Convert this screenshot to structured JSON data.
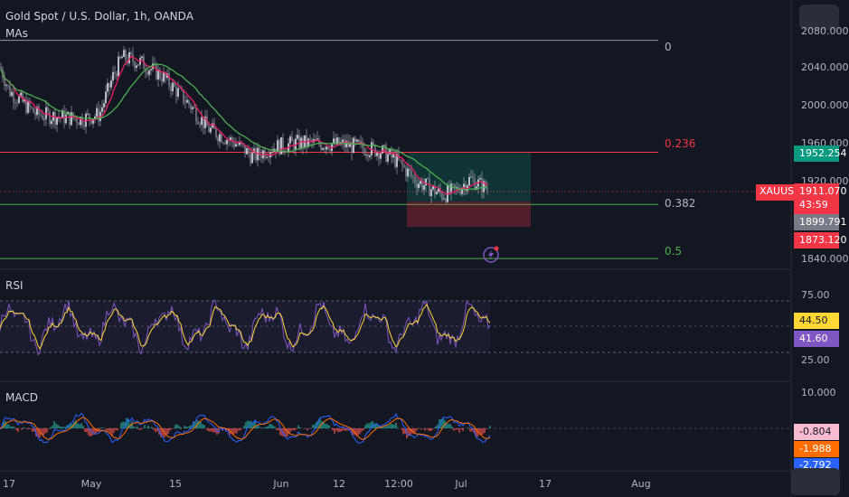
{
  "header": {
    "title": "Gold Spot / U.S. Dollar, 1h, OANDA",
    "indicator": "MAs"
  },
  "fib": {
    "levels": [
      {
        "label": "0",
        "price": 2068.0,
        "color": "#9598a1"
      },
      {
        "label": "0.236",
        "price": 1950.0,
        "color": "#f23645"
      },
      {
        "label": "0.382",
        "price": 1895.0,
        "color": "#4caf50"
      },
      {
        "label": "0.5",
        "price": 1838.0,
        "color": "#4caf50"
      }
    ]
  },
  "price_axis": {
    "ticks": [
      "2080.000",
      "2040.000",
      "2000.000",
      "1960.000",
      "1920.000",
      "1840.000"
    ],
    "current": {
      "symbol": "XAUUSD",
      "price": "1911.070",
      "countdown": "43:59"
    },
    "tags": {
      "target": "1952.254",
      "entry": "1899.791",
      "stop": "1873.120"
    }
  },
  "rsi": {
    "label": "RSI",
    "ticks": [
      "75.00",
      "25.00"
    ],
    "tags": {
      "ma": "44.50",
      "rsi": "41.60"
    }
  },
  "macd": {
    "label": "MACD",
    "ticks": [
      "10.000"
    ],
    "tags": {
      "hist": "-0.804",
      "signal": "-1.988",
      "macd": "-2.792"
    }
  },
  "time_axis": {
    "ticks": [
      "17",
      "May",
      "15",
      "Jun",
      "12",
      "12:00",
      "Jul",
      "17",
      "Aug"
    ]
  },
  "colors": {
    "background": "#131722",
    "candle_up": "#e0e3eb",
    "candle_down": "#b2b5be",
    "ma_fast": "#e91e63",
    "ma_slow": "#4caf50",
    "rsi": "#7e57c2",
    "rsi_ma": "#fdd835",
    "macd_line": "#2962ff",
    "signal_line": "#ff6d00",
    "hist_pos": "#26a69a",
    "hist_neg": "#ef5350",
    "current_price": "#f23645"
  },
  "icons": {
    "alert": "lightning-bolt-icon"
  }
}
